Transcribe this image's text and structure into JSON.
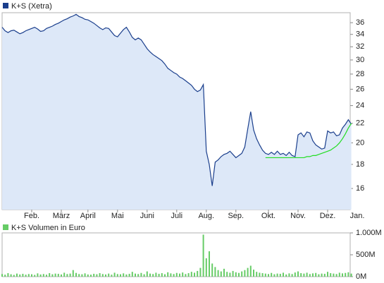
{
  "chart_data": [
    {
      "type": "line",
      "log_scale": true,
      "grid": false,
      "categories": [
        null,
        null,
        null,
        null,
        null,
        null,
        null,
        null,
        null,
        null,
        "Feb.",
        null,
        null,
        null,
        null,
        null,
        null,
        null,
        null,
        null,
        "März",
        null,
        null,
        null,
        null,
        null,
        null,
        null,
        null,
        "April",
        null,
        null,
        null,
        null,
        null,
        null,
        null,
        null,
        null,
        "Mai",
        null,
        null,
        null,
        null,
        null,
        null,
        null,
        null,
        null,
        "Juni",
        null,
        null,
        null,
        null,
        null,
        null,
        null,
        null,
        null,
        "Juli",
        null,
        null,
        null,
        null,
        null,
        null,
        null,
        null,
        null,
        "Aug.",
        null,
        null,
        null,
        null,
        null,
        null,
        null,
        null,
        null,
        "Sep.",
        null,
        null,
        null,
        null,
        null,
        null,
        null,
        null,
        null,
        null,
        "Okt.",
        null,
        null,
        null,
        null,
        null,
        null,
        null,
        null,
        null,
        "Nov.",
        null,
        null,
        null,
        null,
        null,
        null,
        null,
        null,
        null,
        "Dez.",
        null,
        null,
        null,
        null,
        null,
        null,
        null,
        null,
        null,
        "Jan."
      ],
      "ylim": [
        14.43,
        37.8
      ],
      "yticks": [
        16,
        18,
        20,
        22,
        24,
        26,
        28,
        30,
        32,
        34,
        36
      ],
      "series": [
        {
          "name": "K+S (Xetra)",
          "color": "#1a3e8c",
          "fill": "#dde8f8",
          "values": [
            35.2,
            34.6,
            34.3,
            34.6,
            34.7,
            34.4,
            34.1,
            34.3,
            34.6,
            34.8,
            35.0,
            35.2,
            34.9,
            34.5,
            34.6,
            35.0,
            35.2,
            35.4,
            35.7,
            35.9,
            36.2,
            36.5,
            36.7,
            37.0,
            37.2,
            37.5,
            37.1,
            36.9,
            36.6,
            36.5,
            36.2,
            35.9,
            35.5,
            35.1,
            34.8,
            35.1,
            35.0,
            34.4,
            33.8,
            33.6,
            34.2,
            34.8,
            35.2,
            34.4,
            33.5,
            33.1,
            33.4,
            33.1,
            32.4,
            31.7,
            31.2,
            30.8,
            30.5,
            30.2,
            29.9,
            29.4,
            28.8,
            28.5,
            28.2,
            28.0,
            27.6,
            27.4,
            27.1,
            26.8,
            26.5,
            26.0,
            25.7,
            25.9,
            26.6,
            19.2,
            18.0,
            16.2,
            18.2,
            18.4,
            18.7,
            18.9,
            19.0,
            19.2,
            18.9,
            18.6,
            18.8,
            19.0,
            19.6,
            21.4,
            23.3,
            21.3,
            20.4,
            19.8,
            19.3,
            19.0,
            18.9,
            19.1,
            18.9,
            19.2,
            18.9,
            19.0,
            18.8,
            19.1,
            18.8,
            18.7,
            20.8,
            21.0,
            20.6,
            21.1,
            21.0,
            20.2,
            19.8,
            19.6,
            19.4,
            19.5,
            21.2,
            21.0,
            21.1,
            20.7,
            20.8,
            21.5,
            21.9,
            22.4,
            21.9,
            null,
            null
          ]
        },
        {
          "color": "#22dd22",
          "values": [
            null,
            null,
            null,
            null,
            null,
            null,
            null,
            null,
            null,
            null,
            null,
            null,
            null,
            null,
            null,
            null,
            null,
            null,
            null,
            null,
            null,
            null,
            null,
            null,
            null,
            null,
            null,
            null,
            null,
            null,
            null,
            null,
            null,
            null,
            null,
            null,
            null,
            null,
            null,
            null,
            null,
            null,
            null,
            null,
            null,
            null,
            null,
            null,
            null,
            null,
            null,
            null,
            null,
            null,
            null,
            null,
            null,
            null,
            null,
            null,
            null,
            null,
            null,
            null,
            null,
            null,
            null,
            null,
            null,
            null,
            null,
            null,
            null,
            null,
            null,
            null,
            null,
            null,
            null,
            null,
            null,
            null,
            null,
            null,
            null,
            null,
            null,
            null,
            null,
            18.6,
            18.6,
            18.6,
            18.6,
            18.6,
            18.6,
            18.6,
            18.6,
            18.6,
            18.6,
            18.6,
            18.6,
            18.6,
            18.6,
            18.7,
            18.7,
            18.8,
            18.8,
            18.9,
            19.0,
            19.1,
            19.2,
            19.3,
            19.5,
            19.7,
            20.0,
            20.4,
            20.9,
            21.5,
            22.0,
            null,
            null
          ]
        }
      ]
    },
    {
      "type": "bar",
      "ylim": [
        0,
        1000
      ],
      "yticks": [
        {
          "value": 0,
          "label": "0M"
        },
        {
          "value": 500,
          "label": "500M"
        },
        {
          "value": 1000,
          "label": "1.000M"
        }
      ],
      "series": [
        {
          "name": "K+S Volumen in Euro",
          "color": "#66cc66",
          "values": [
            60,
            45,
            80,
            55,
            40,
            70,
            50,
            65,
            45,
            60,
            55,
            40,
            75,
            50,
            60,
            45,
            80,
            55,
            70,
            65,
            50,
            90,
            60,
            70,
            150,
            85,
            60,
            55,
            75,
            50,
            45,
            65,
            55,
            80,
            60,
            50,
            70,
            45,
            90,
            60,
            55,
            75,
            50,
            65,
            110,
            70,
            60,
            85,
            55,
            120,
            70,
            60,
            90,
            65,
            80,
            55,
            100,
            75,
            60,
            85,
            70,
            95,
            60,
            80,
            110,
            90,
            130,
            200,
            960,
            420,
            580,
            300,
            220,
            150,
            120,
            180,
            110,
            90,
            130,
            100,
            85,
            120,
            150,
            200,
            250,
            160,
            110,
            90,
            80,
            70,
            60,
            85,
            55,
            70,
            65,
            90,
            50,
            75,
            60,
            95,
            120,
            80,
            70,
            90,
            60,
            75,
            85,
            55,
            70,
            65,
            110,
            80,
            70,
            60,
            90,
            75,
            85,
            100,
            70,
            null,
            null
          ]
        }
      ]
    }
  ]
}
